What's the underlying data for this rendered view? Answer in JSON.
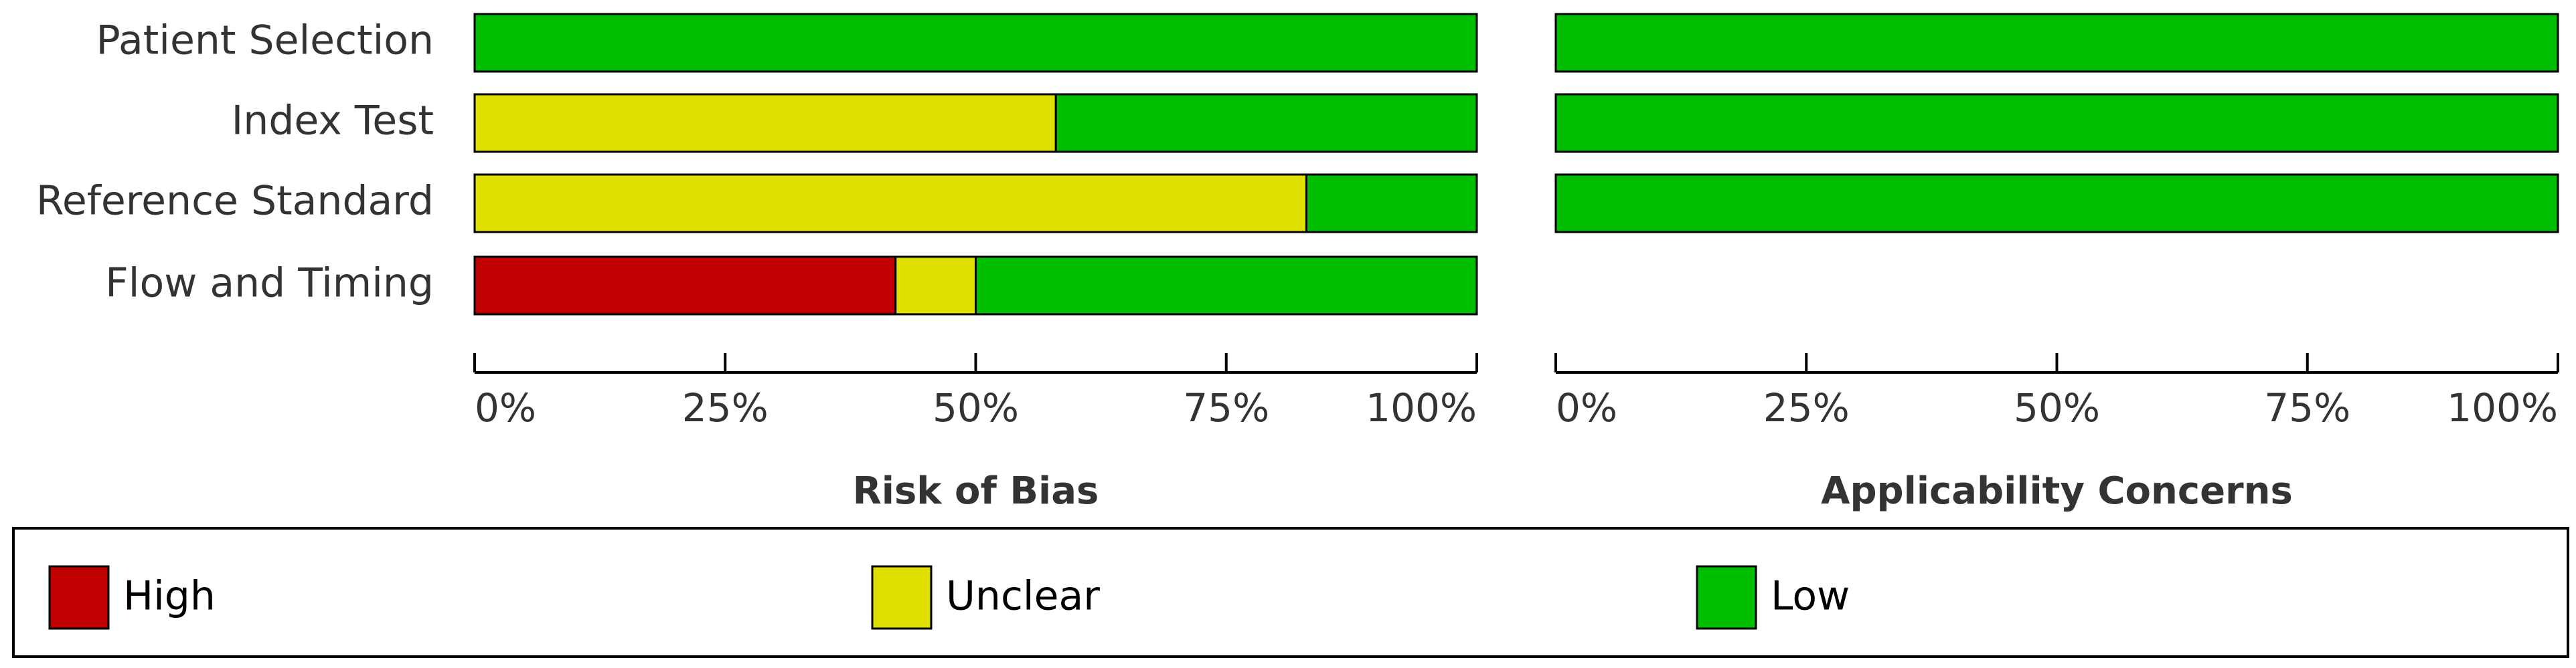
{
  "chart_data": {
    "type": "bar",
    "orientation": "horizontal",
    "stacked": true,
    "categories": [
      "Patient Selection",
      "Index Test",
      "Reference Standard",
      "Flow and Timing"
    ],
    "series": [
      {
        "name": "High",
        "color": "#c00000"
      },
      {
        "name": "Unclear",
        "color": "#e0e000"
      },
      {
        "name": "Low",
        "color": "#00bf00"
      }
    ],
    "panels": [
      {
        "title": "Risk of Bias",
        "values": [
          [
            0,
            0,
            0,
            42
          ],
          [
            0,
            58,
            83,
            8
          ],
          [
            100,
            42,
            17,
            50
          ]
        ]
      },
      {
        "title": "Applicability Concerns",
        "values": [
          [
            0,
            0,
            0,
            null
          ],
          [
            0,
            0,
            0,
            null
          ],
          [
            100,
            100,
            100,
            null
          ]
        ]
      }
    ],
    "xlim": [
      0,
      100
    ],
    "xticks": [
      {
        "value": 0,
        "label": "0%"
      },
      {
        "value": 25,
        "label": "25%"
      },
      {
        "value": 50,
        "label": "50%"
      },
      {
        "value": 75,
        "label": "75%"
      },
      {
        "value": 100,
        "label": "100%"
      }
    ]
  }
}
